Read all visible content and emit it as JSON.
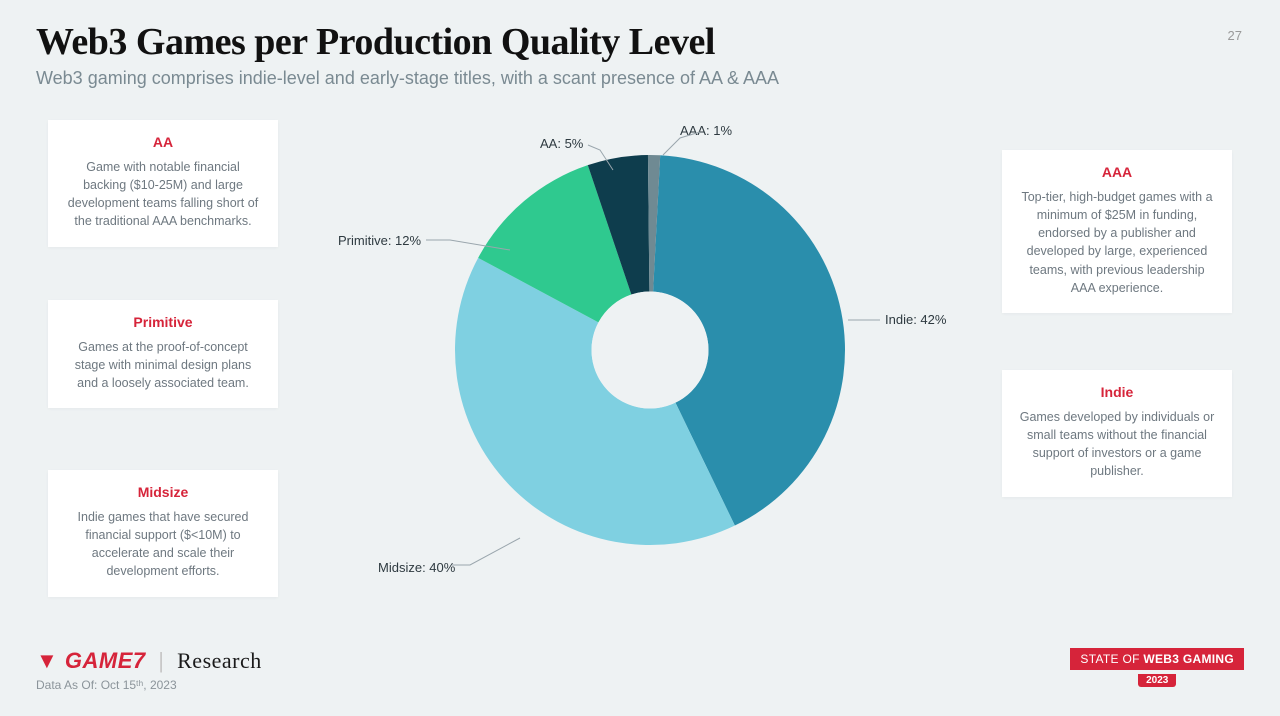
{
  "page": {
    "title": "Web3 Games per Production Quality Level",
    "subtitle": "Web3 gaming comprises indie-level and early-stage titles, with a scant presence of AA & AAA",
    "page_number": "27"
  },
  "cards": {
    "aa": {
      "title": "AA",
      "body": "Game with notable financial backing ($10-25M) and large development teams falling short of the traditional AAA benchmarks."
    },
    "primitive": {
      "title": "Primitive",
      "body": "Games at the proof-of-concept stage with minimal design plans and a loosely associated team."
    },
    "midsize": {
      "title": "Midsize",
      "body": "Indie games that have secured financial support ($<10M) to accelerate and scale their development efforts."
    },
    "aaa": {
      "title": "AAA",
      "body": "Top-tier, high-budget games with a minimum of $25M in funding, endorsed by a publisher and developed by large, experienced teams, with previous leadership AAA experience."
    },
    "indie": {
      "title": "Indie",
      "body": "Games developed by individuals or small teams without the financial support of investors or a game publisher."
    }
  },
  "chart": {
    "type": "donut",
    "inner_radius_ratio": 0.3,
    "start_angle_deg": 3,
    "background_color": "#eef2f3",
    "label_fontsize": 13,
    "label_color": "#2e3a40",
    "leader_color": "#9aa6ad",
    "slices": [
      {
        "key": "indie",
        "label": "Indie: 42%",
        "value": 42,
        "color": "#2a8eac"
      },
      {
        "key": "midsize",
        "label": "Midsize: 40%",
        "value": 40,
        "color": "#7fd0e1"
      },
      {
        "key": "primitive",
        "label": "Primitive: 12%",
        "value": 12,
        "color": "#2fc98f"
      },
      {
        "key": "aa",
        "label": "AA: 5%",
        "value": 5,
        "color": "#0e3d4d"
      },
      {
        "key": "aaa",
        "label": "AAA: 1%",
        "value": 1,
        "color": "#6f8a93"
      }
    ]
  },
  "footer": {
    "brand_game7": "GAME7",
    "brand_sep": "|",
    "brand_research": "Research",
    "data_as_of": "Data As Of: Oct 15ᵗʰ, 2023",
    "badge_line_1a": "STATE OF ",
    "badge_line_1b": "WEB3 GAMING",
    "badge_year": "2023"
  },
  "style": {
    "title_color": "#111",
    "card_title_color": "#d6243a",
    "card_body_color": "#6e7880",
    "brand_red": "#d6243a"
  }
}
